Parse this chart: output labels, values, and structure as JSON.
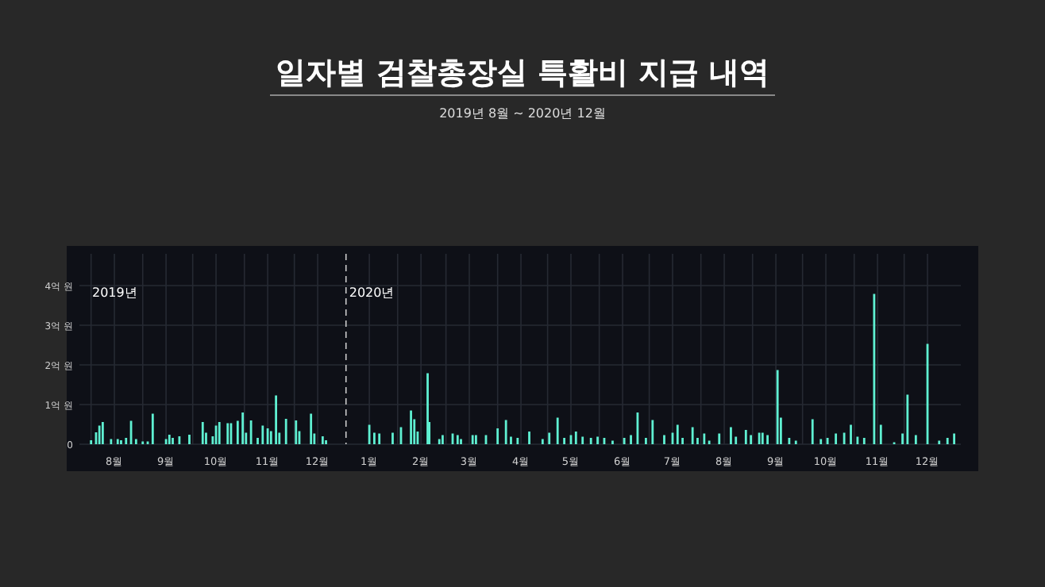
{
  "chart_data": {
    "type": "bar",
    "title": "일자별 검찰총장실 특활비 지급 내역",
    "subtitle": "2019년 8월 ~ 2020년 12월",
    "annotations": [
      "2019년"
    ],
    "x": [
      "2019-08-01",
      "2019-08-04",
      "2019-08-06",
      "2019-08-08",
      "2019-08-13",
      "2019-08-17",
      "2019-08-19",
      "2019-08-22",
      "2019-08-25",
      "2019-08-28",
      "2019-09-01",
      "2019-09-04",
      "2019-09-07",
      "2019-09-15",
      "2019-09-17",
      "2019-09-19",
      "2019-09-23",
      "2019-09-29",
      "2019-10-07",
      "2019-10-09",
      "2019-10-13",
      "2019-10-15",
      "2019-10-17",
      "2019-10-22",
      "2019-10-24",
      "2019-10-28",
      "2019-10-31",
      "2019-11-02",
      "2019-11-05",
      "2019-11-09",
      "2019-11-12",
      "2019-11-15",
      "2019-11-17",
      "2019-11-20",
      "2019-11-22",
      "2019-11-26",
      "2019-12-02",
      "2019-12-04",
      "2019-12-11",
      "2019-12-13",
      "2019-12-18",
      "2019-12-20",
      "2020-01-15",
      "2020-01-18",
      "2020-01-21",
      "2020-01-29",
      "2020-02-03",
      "2020-02-09",
      "2020-02-11",
      "2020-02-13",
      "2020-02-19",
      "2020-02-20",
      "2020-02-26",
      "2020-02-28",
      "2020-03-05",
      "2020-03-08",
      "2020-03-10",
      "2020-03-17",
      "2020-03-19",
      "2020-03-25",
      "2020-04-01",
      "2020-04-06",
      "2020-04-09",
      "2020-04-13",
      "2020-04-20",
      "2020-04-28",
      "2020-05-02",
      "2020-05-07",
      "2020-05-11",
      "2020-05-15",
      "2020-05-18",
      "2020-05-22",
      "2020-05-27",
      "2020-05-31",
      "2020-06-04",
      "2020-06-09",
      "2020-06-16",
      "2020-06-20",
      "2020-06-24",
      "2020-06-29",
      "2020-07-03",
      "2020-07-10",
      "2020-07-15",
      "2020-07-18",
      "2020-07-21",
      "2020-07-27",
      "2020-07-30",
      "2020-08-03",
      "2020-08-06",
      "2020-08-12",
      "2020-08-19",
      "2020-08-22",
      "2020-08-28",
      "2020-08-31",
      "2020-09-05",
      "2020-09-07",
      "2020-09-10",
      "2020-09-16",
      "2020-09-18",
      "2020-09-23",
      "2020-09-27",
      "2020-10-07",
      "2020-10-12",
      "2020-10-16",
      "2020-10-21",
      "2020-10-26",
      "2020-10-30",
      "2020-11-03",
      "2020-11-07",
      "2020-11-13",
      "2020-11-17",
      "2020-11-25",
      "2020-11-30",
      "2020-12-03",
      "2020-12-08",
      "2020-12-15",
      "2020-12-22",
      "2020-12-27",
      "2020-12-31"
    ],
    "values": [
      0.1,
      0.3,
      0.47,
      0.56,
      0.13,
      0.13,
      0.1,
      0.16,
      0.59,
      0.13,
      0.07,
      0.07,
      0.77,
      0.13,
      0.24,
      0.16,
      0.2,
      0.24,
      0.56,
      0.29,
      0.2,
      0.47,
      0.56,
      0.53,
      0.53,
      0.59,
      0.8,
      0.29,
      0.6,
      0.16,
      0.47,
      0.4,
      0.33,
      1.23,
      0.29,
      0.64,
      0.6,
      0.33,
      0.77,
      0.27,
      0.2,
      0.1,
      0.49,
      0.29,
      0.27,
      0.29,
      0.43,
      0.85,
      0.63,
      0.32,
      1.79,
      0.56,
      0.13,
      0.23,
      0.27,
      0.23,
      0.13,
      0.23,
      0.23,
      0.23,
      0.4,
      0.61,
      0.19,
      0.16,
      0.32,
      0.13,
      0.29,
      0.67,
      0.16,
      0.23,
      0.32,
      0.19,
      0.16,
      0.19,
      0.16,
      0.09,
      0.16,
      0.23,
      0.8,
      0.16,
      0.61,
      0.23,
      0.29,
      0.49,
      0.16,
      0.43,
      0.16,
      0.27,
      0.09,
      0.27,
      0.43,
      0.19,
      0.36,
      0.23,
      0.29,
      0.29,
      0.23,
      1.87,
      0.67,
      0.16,
      0.09,
      0.63,
      0.13,
      0.16,
      0.27,
      0.29,
      0.49,
      0.19,
      0.16,
      3.79,
      0.49,
      0.05,
      0.27,
      1.25,
      0.23,
      2.53,
      0.09,
      0.16,
      0.27
    ],
    "color": "#5ff0d2",
    "xlim": [
      "2019-07-25",
      "2021-01-04"
    ],
    "xticks": [
      {
        "value": "2019-08-15",
        "label": "8월"
      },
      {
        "value": "2019-09-15",
        "label": "9월"
      },
      {
        "value": "2019-10-15",
        "label": "10월"
      },
      {
        "value": "2019-11-15",
        "label": "11월"
      },
      {
        "value": "2019-12-15",
        "label": "12월"
      },
      {
        "value": "2020-01-15",
        "label": "1월"
      },
      {
        "value": "2020-02-15",
        "label": "2월"
      },
      {
        "value": "2020-03-15",
        "label": "3월"
      },
      {
        "value": "2020-04-15",
        "label": "4월"
      },
      {
        "value": "2020-05-15",
        "label": "5월"
      },
      {
        "value": "2020-06-15",
        "label": "6월"
      },
      {
        "value": "2020-07-15",
        "label": "7월"
      },
      {
        "value": "2020-08-15",
        "label": "8월"
      },
      {
        "value": "2020-09-15",
        "label": "9월"
      },
      {
        "value": "2020-10-15",
        "label": "10월"
      },
      {
        "value": "2020-11-15",
        "label": "11월"
      },
      {
        "value": "2020-12-15",
        "label": "12월"
      },
      {
        "value": "2019-08-01",
        "label": null
      },
      {
        "value": "2019-09-01",
        "label": null
      },
      {
        "value": "2019-10-01",
        "label": null
      },
      {
        "value": "2019-11-01",
        "label": null
      },
      {
        "value": "2019-12-01",
        "label": null
      },
      {
        "value": "2020-02-01",
        "label": null
      },
      {
        "value": "2020-03-01",
        "label": null
      },
      {
        "value": "2020-04-01",
        "label": null
      },
      {
        "value": "2020-05-01",
        "label": null
      },
      {
        "value": "2020-06-01",
        "label": null
      },
      {
        "value": "2020-07-01",
        "label": null
      },
      {
        "value": "2020-08-01",
        "label": null
      },
      {
        "value": "2020-09-01",
        "label": null
      },
      {
        "value": "2020-10-01",
        "label": null
      },
      {
        "value": "2020-11-01",
        "label": null
      },
      {
        "value": "2020-12-01",
        "label": null
      }
    ],
    "ylim": [
      0,
      4.8
    ],
    "yticks": [
      0,
      {
        "value": 1,
        "label": "1억 원"
      },
      {
        "value": 2,
        "label": "2억 원"
      },
      {
        "value": 3,
        "label": "3억 원"
      },
      {
        "value": 4,
        "label": "4억 원"
      }
    ],
    "grid": true,
    "ref_lines": [
      {
        "axis": "x",
        "value": "2020-01-01",
        "label": "2020년",
        "color": "#cccccc",
        "line_style": "dashed"
      }
    ]
  }
}
